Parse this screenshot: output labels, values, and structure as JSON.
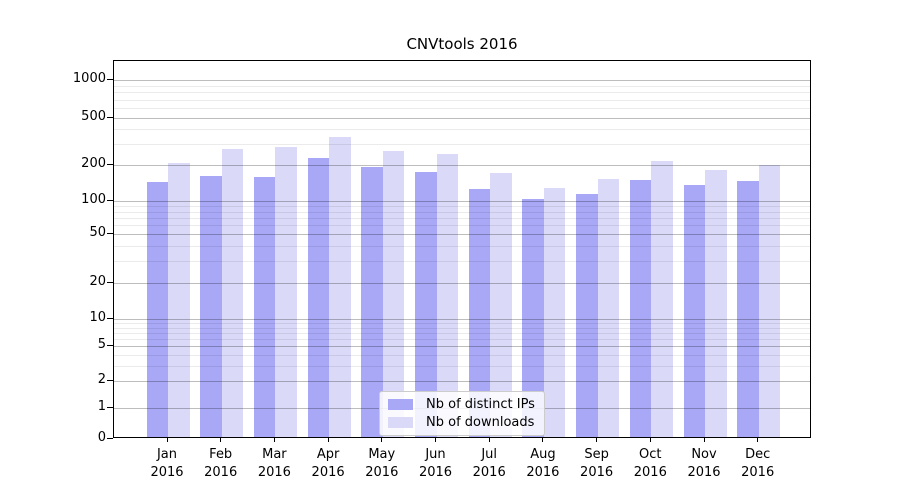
{
  "title": "CNVtools 2016",
  "chart_data": {
    "type": "bar",
    "title": "CNVtools 2016",
    "categories": [
      "Jan 2016",
      "Feb 2016",
      "Mar 2016",
      "Apr 2016",
      "May 2016",
      "Jun 2016",
      "Jul 2016",
      "Aug 2016",
      "Sep 2016",
      "Oct 2016",
      "Nov 2016",
      "Dec 2016"
    ],
    "series": [
      {
        "name": "Nb of distinct IPs",
        "color": "#a8a8f6",
        "values": [
          139,
          156,
          152,
          219,
          184,
          167,
          121,
          100,
          110,
          144,
          130,
          141
        ]
      },
      {
        "name": "Nb of downloads",
        "color": "#dadaf8",
        "values": [
          202,
          262,
          272,
          330,
          254,
          240,
          165,
          123,
          147,
          210,
          175,
          192
        ]
      }
    ],
    "xlabel": "",
    "ylabel": "",
    "yticks": [
      0,
      1,
      2,
      5,
      10,
      20,
      50,
      100,
      200,
      500,
      1000
    ],
    "minor_yticks": [
      3,
      4,
      6,
      7,
      8,
      9,
      30,
      40,
      60,
      70,
      80,
      90,
      300,
      400,
      600,
      700,
      800,
      900
    ],
    "scale": "log",
    "ylim": [
      0,
      1450
    ],
    "grid": "horizontal",
    "legend_position": "bottom-center"
  }
}
